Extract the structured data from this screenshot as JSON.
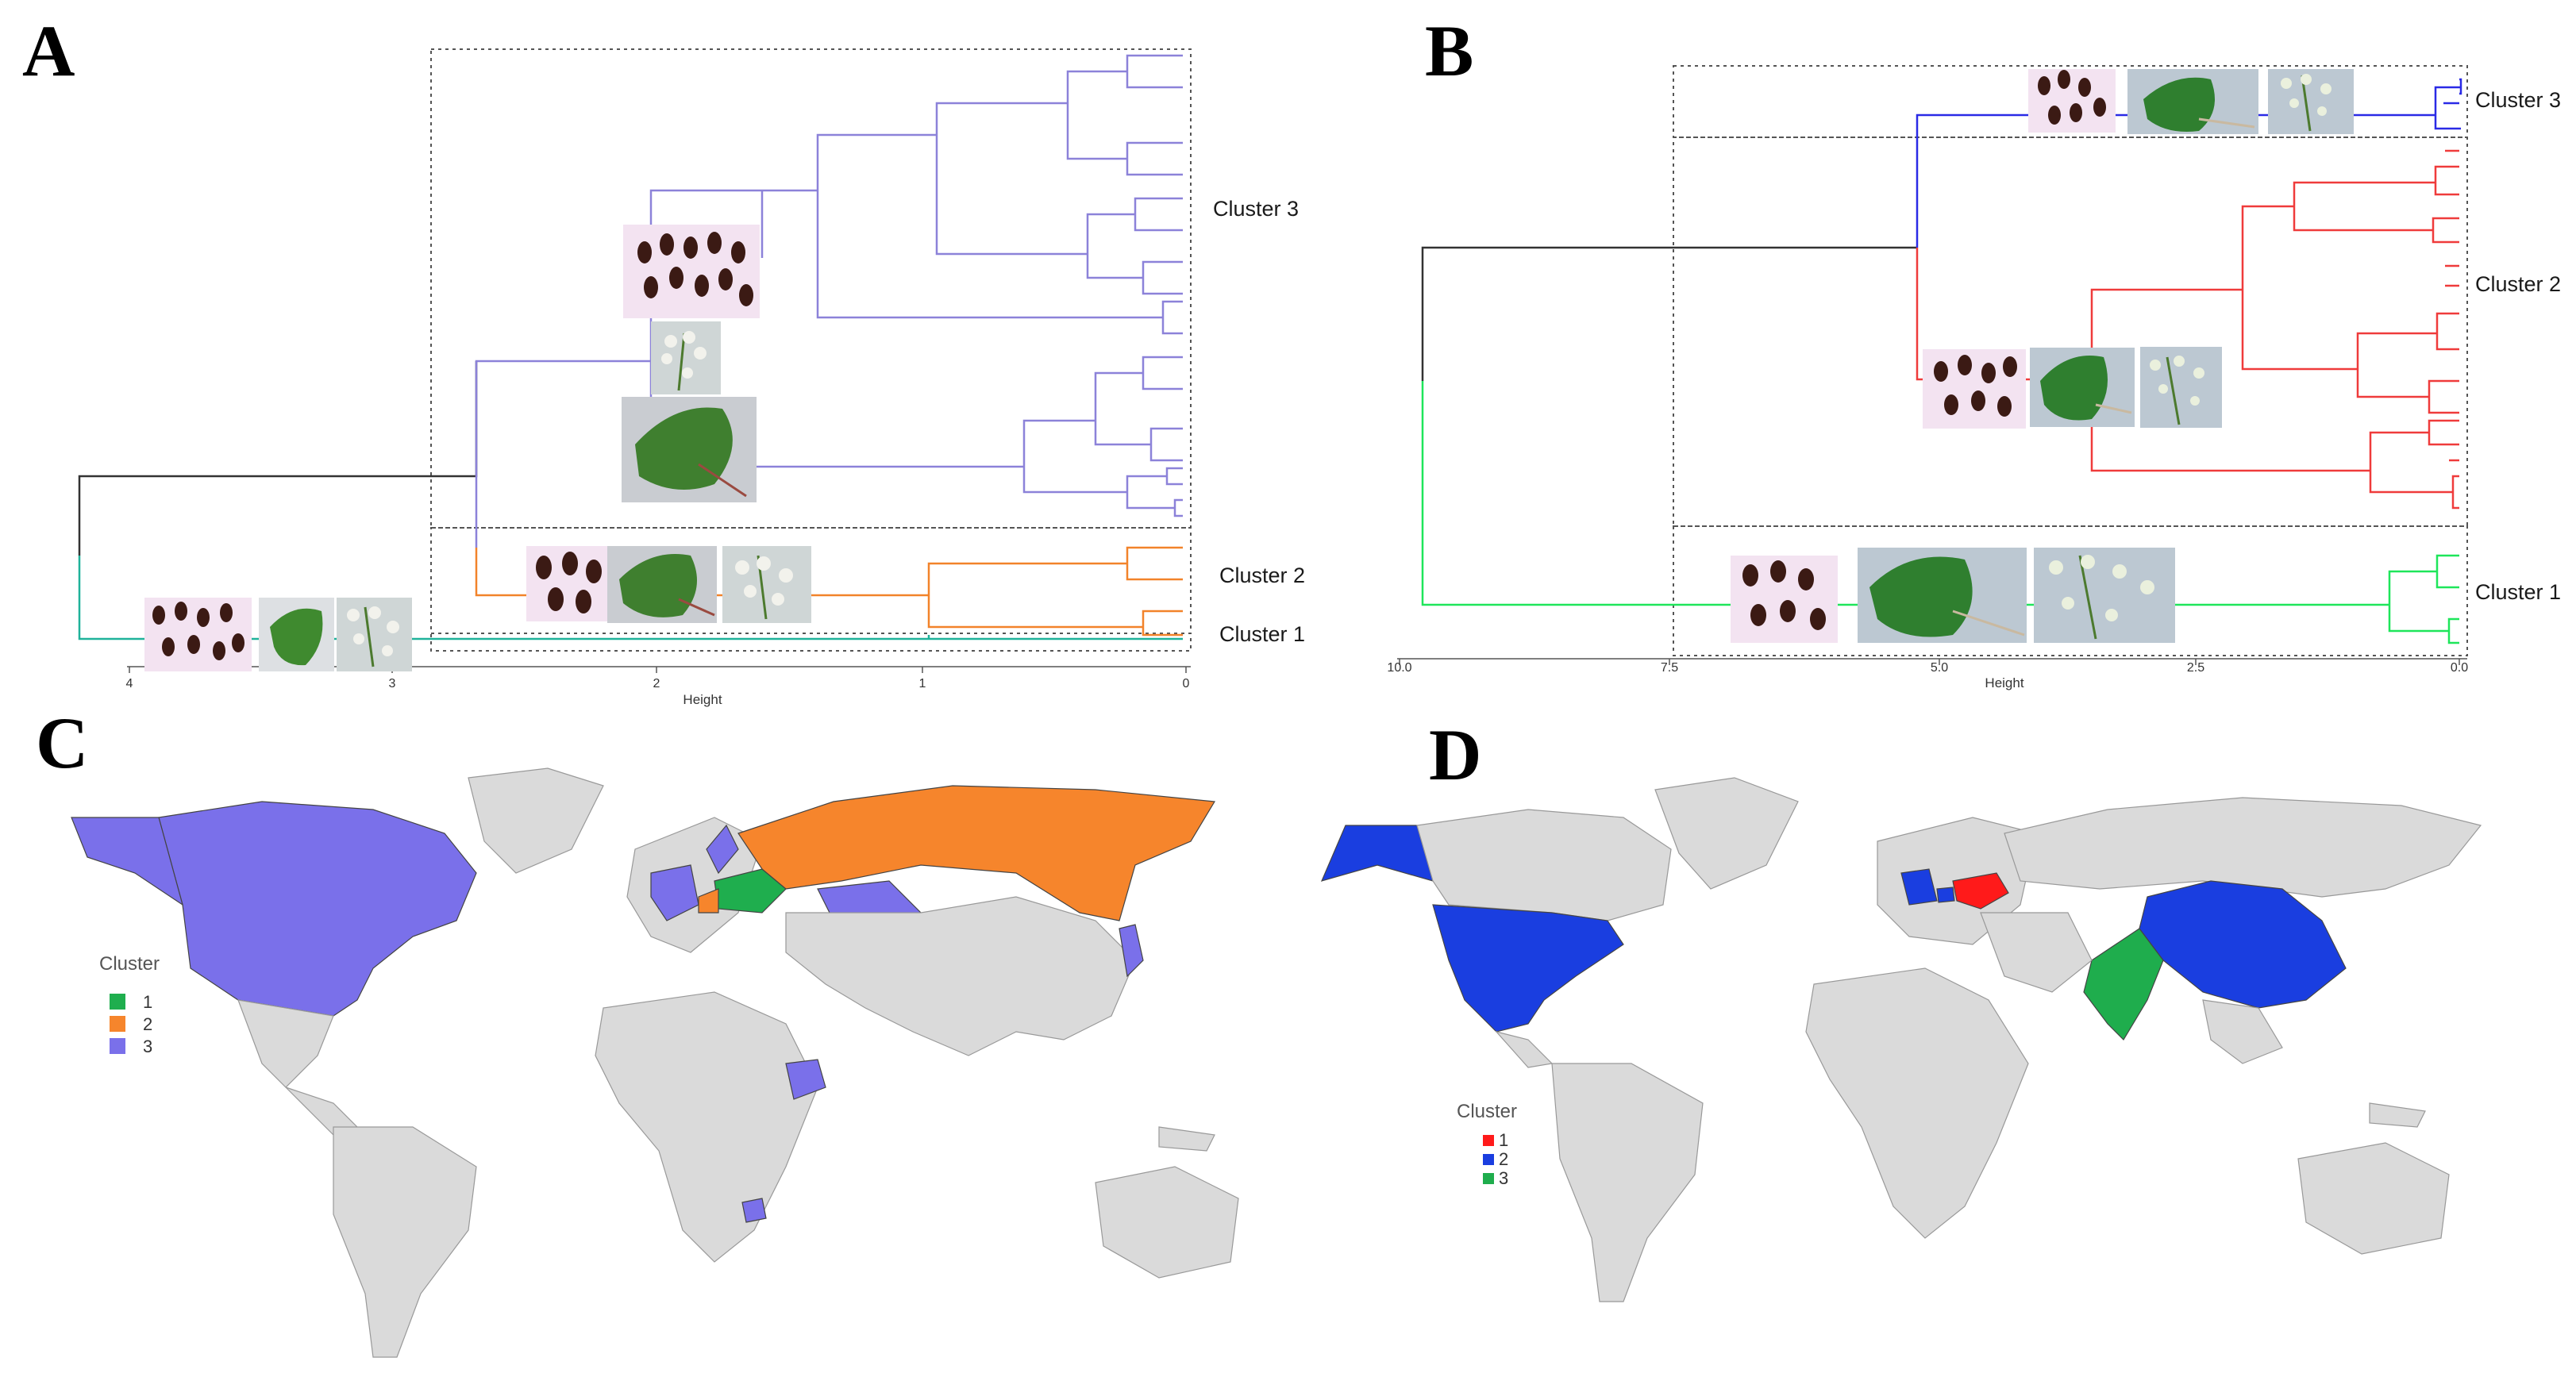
{
  "panels": {
    "a": {
      "letter": "A",
      "axis_title": "Height",
      "ticks": [
        "4",
        "3",
        "2",
        "1",
        "0"
      ],
      "clusters": [
        {
          "label": "Cluster 3",
          "color": "#8c82d9"
        },
        {
          "label": "Cluster 2",
          "color": "#f2832a"
        },
        {
          "label": "Cluster 1",
          "color": "#1fb29a"
        }
      ],
      "root_color": "#333333"
    },
    "b": {
      "letter": "B",
      "axis_title": "Height",
      "ticks": [
        "10.0",
        "7.5",
        "5.0",
        "2.5",
        "0.0"
      ],
      "clusters": [
        {
          "label": "Cluster 3",
          "color": "#2a2ae6"
        },
        {
          "label": "Cluster 2",
          "color": "#ef3b3b"
        },
        {
          "label": "Cluster 1",
          "color": "#1ee65a"
        }
      ],
      "root_color": "#333333"
    },
    "c": {
      "letter": "C",
      "legend_title": "Cluster",
      "legend": [
        {
          "label": "1",
          "color": "#1fae4e"
        },
        {
          "label": "2",
          "color": "#f6852c"
        },
        {
          "label": "3",
          "color": "#7a70ea"
        }
      ],
      "land_color": "#dadada"
    },
    "d": {
      "letter": "D",
      "legend_title": "Cluster",
      "legend": [
        {
          "label": "1",
          "color": "#ff1a1a"
        },
        {
          "label": "2",
          "color": "#1a3ee0"
        },
        {
          "label": "3",
          "color": "#1fad4d"
        }
      ],
      "land_color": "#dadada"
    }
  },
  "icons": [
    "seed-photo",
    "leaf-photo",
    "flower-photo"
  ]
}
